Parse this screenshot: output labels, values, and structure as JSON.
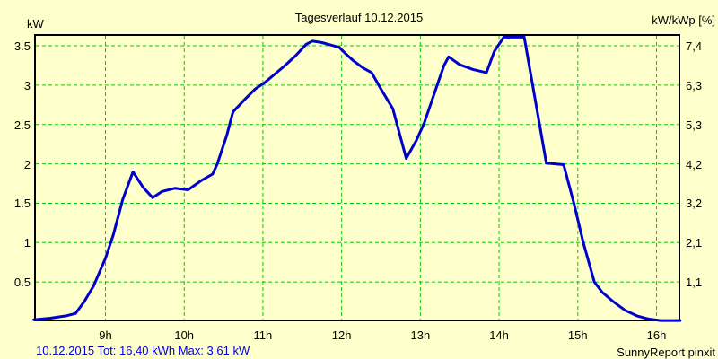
{
  "title": "Tagesverlauf 10.12.2015",
  "left_axis": {
    "label": "kW",
    "ticks": [
      {
        "label": "3.5",
        "value": 3.5
      },
      {
        "label": "3",
        "value": 3.0
      },
      {
        "label": "2.5",
        "value": 2.5
      },
      {
        "label": "2",
        "value": 2.0
      },
      {
        "label": "1.5",
        "value": 1.5
      },
      {
        "label": "1",
        "value": 1.0
      },
      {
        "label": "0.5",
        "value": 0.5
      }
    ]
  },
  "right_axis": {
    "label": "kW/kWp [%]",
    "ticks": [
      {
        "label": "7,4",
        "value": 3.5
      },
      {
        "label": "6,3",
        "value": 3.0
      },
      {
        "label": "5,3",
        "value": 2.5
      },
      {
        "label": "4,2",
        "value": 2.0
      },
      {
        "label": "3,2",
        "value": 1.5
      },
      {
        "label": "2,1",
        "value": 1.0
      },
      {
        "label": "1,1",
        "value": 0.5
      }
    ]
  },
  "x_axis": {
    "ticks": [
      {
        "label": "9h",
        "hour": 9
      },
      {
        "label": "10h",
        "hour": 10
      },
      {
        "label": "11h",
        "hour": 11
      },
      {
        "label": "12h",
        "hour": 12
      },
      {
        "label": "13h",
        "hour": 13
      },
      {
        "label": "14h",
        "hour": 14
      },
      {
        "label": "15h",
        "hour": 15
      },
      {
        "label": "16h",
        "hour": 16
      }
    ]
  },
  "footer": {
    "summary": "10.12.2015 Tot: 16,40 kWh Max: 3,61 kW",
    "credit": "SunnyReport pinxit"
  },
  "colors": {
    "background": "#FFFFCC",
    "grid": "#00CC00",
    "line": "#0000CC",
    "axis_border": "#000000",
    "summary_text": "#0000DD",
    "text": "#000000"
  },
  "chart_data": {
    "type": "line",
    "title": "Tagesverlauf 10.12.2015",
    "date": "10.12.2015",
    "total_kwh": "16,40",
    "max_kw": "3,61",
    "ylabel_left": "kW",
    "ylabel_right": "kW/kWp [%]",
    "x_unit": "hour of day",
    "x_range_hours": [
      8.09,
      16.3
    ],
    "ylim_left": [
      0,
      3.65
    ],
    "grid": "dashed-green, horizontal every 0.5 kW, vertical every hour",
    "legend": "none",
    "series": [
      {
        "name": "power_kw",
        "points": [
          [
            8.09,
            0.02
          ],
          [
            8.3,
            0.04
          ],
          [
            8.5,
            0.07
          ],
          [
            8.62,
            0.1
          ],
          [
            8.73,
            0.25
          ],
          [
            8.85,
            0.45
          ],
          [
            9.0,
            0.8
          ],
          [
            9.1,
            1.1
          ],
          [
            9.22,
            1.55
          ],
          [
            9.35,
            1.9
          ],
          [
            9.48,
            1.7
          ],
          [
            9.6,
            1.57
          ],
          [
            9.72,
            1.65
          ],
          [
            9.88,
            1.69
          ],
          [
            10.05,
            1.67
          ],
          [
            10.22,
            1.79
          ],
          [
            10.36,
            1.87
          ],
          [
            10.42,
            2.0
          ],
          [
            10.54,
            2.36
          ],
          [
            10.62,
            2.66
          ],
          [
            10.77,
            2.82
          ],
          [
            10.9,
            2.95
          ],
          [
            11.02,
            3.03
          ],
          [
            11.15,
            3.14
          ],
          [
            11.27,
            3.24
          ],
          [
            11.42,
            3.38
          ],
          [
            11.55,
            3.52
          ],
          [
            11.63,
            3.56
          ],
          [
            11.75,
            3.54
          ],
          [
            11.9,
            3.5
          ],
          [
            11.97,
            3.48
          ],
          [
            12.05,
            3.4
          ],
          [
            12.15,
            3.31
          ],
          [
            12.27,
            3.22
          ],
          [
            12.38,
            3.16
          ],
          [
            12.5,
            2.95
          ],
          [
            12.65,
            2.7
          ],
          [
            12.82,
            2.07
          ],
          [
            12.95,
            2.3
          ],
          [
            13.05,
            2.52
          ],
          [
            13.22,
            3.02
          ],
          [
            13.3,
            3.25
          ],
          [
            13.36,
            3.36
          ],
          [
            13.5,
            3.26
          ],
          [
            13.67,
            3.2
          ],
          [
            13.84,
            3.16
          ],
          [
            13.94,
            3.43
          ],
          [
            14.06,
            3.61
          ],
          [
            14.32,
            3.61
          ],
          [
            14.6,
            2.01
          ],
          [
            14.82,
            1.99
          ],
          [
            14.95,
            1.5
          ],
          [
            15.07,
            1.0
          ],
          [
            15.21,
            0.5
          ],
          [
            15.31,
            0.37
          ],
          [
            15.45,
            0.25
          ],
          [
            15.6,
            0.14
          ],
          [
            15.75,
            0.07
          ],
          [
            15.9,
            0.03
          ],
          [
            16.05,
            0.01
          ],
          [
            16.3,
            0.01
          ]
        ]
      }
    ]
  }
}
